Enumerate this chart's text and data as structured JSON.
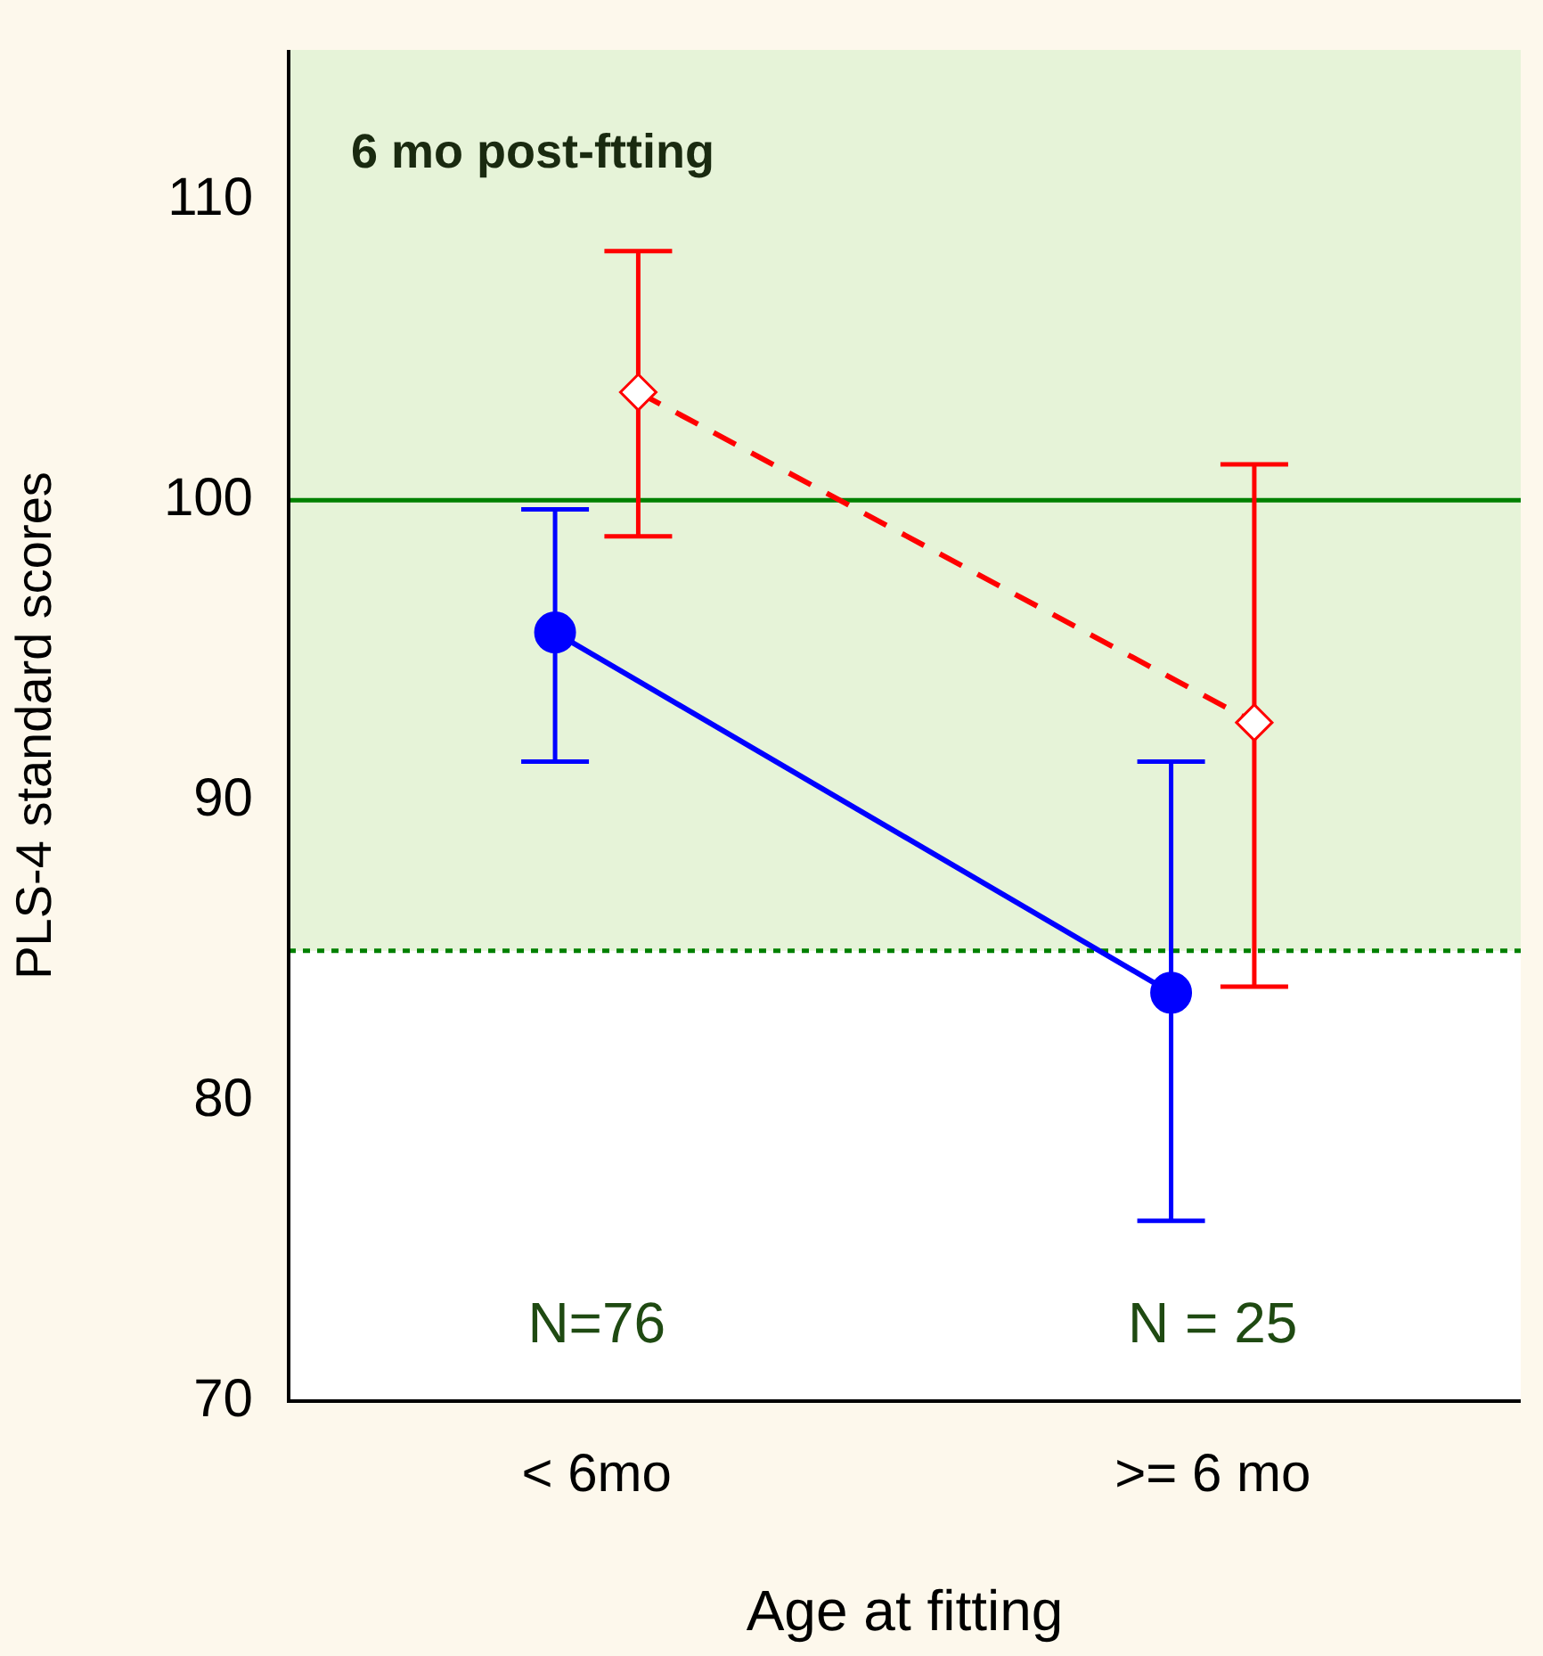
{
  "chart_data": {
    "type": "line",
    "xlabel": "Age at fitting",
    "ylabel": "PLS-4 standard scores",
    "categories": [
      "< 6mo",
      ">= 6 mo"
    ],
    "series": [
      {
        "color": "#0000ff",
        "values": [
          95.6,
          83.6
        ],
        "errors": [
          [
            91.3,
            99.7
          ],
          [
            76.0,
            91.3
          ]
        ],
        "marker": "circle",
        "line_style": "solid"
      },
      {
        "color": "#ff0000",
        "values": [
          103.6,
          92.6
        ],
        "errors": [
          [
            98.8,
            108.3
          ],
          [
            83.8,
            101.2
          ]
        ],
        "marker": "diamond",
        "line_style": "dashed"
      }
    ],
    "ylim": [
      70,
      115
    ],
    "yticks": [
      70,
      80,
      90,
      100,
      110
    ],
    "grid": false,
    "legend": false,
    "ref_lines": [
      {
        "axis": "y",
        "value": 100,
        "color": "#008000",
        "line_style": "solid"
      },
      {
        "axis": "y",
        "value": 85,
        "color": "#008000",
        "line_style": "dotted"
      }
    ],
    "bands": [
      {
        "axis": "y",
        "from": 85,
        "to": 115,
        "color": "#e6f3d8"
      }
    ],
    "annotations": [
      "6 mo post-ftting",
      "N=76",
      "N = 25"
    ]
  }
}
